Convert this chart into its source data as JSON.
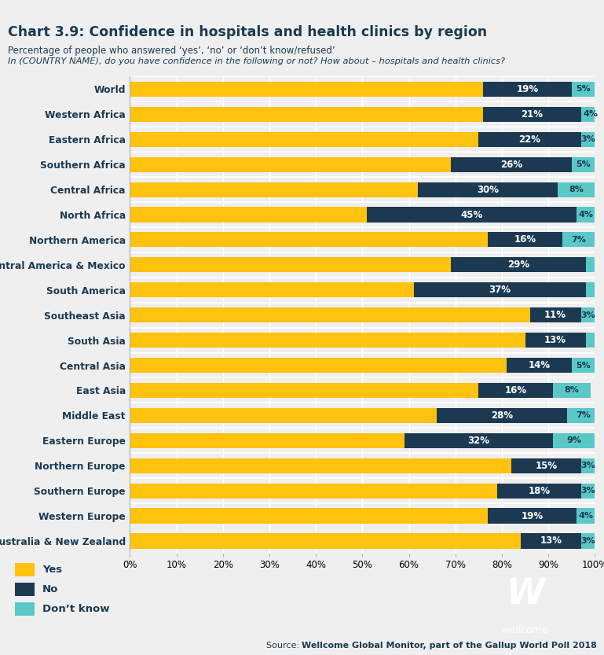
{
  "title": "Chart 3.9: Confidence in hospitals and health clinics by region",
  "subtitle1": "Percentage of people who answered ‘yes’, ‘no’ or ‘don’t know/refused’",
  "subtitle2": "In (COUNTRY NAME), do you have confidence in the following or not? How about – hospitals and health clinics?",
  "source_normal": "Source: ",
  "source_bold": "Wellcome Global Monitor, part of the Gallup World Poll 2018",
  "categories": [
    "World",
    "Western Africa",
    "Eastern Africa",
    "Southern Africa",
    "Central Africa",
    "North Africa",
    "Northern America",
    "Central America & Mexico",
    "South America",
    "Southeast Asia",
    "South Asia",
    "Central Asia",
    "East Asia",
    "Middle East",
    "Eastern Europe",
    "Northern Europe",
    "Southern Europe",
    "Western Europe",
    "Australia & New Zealand"
  ],
  "yes": [
    76,
    76,
    75,
    69,
    62,
    51,
    77,
    69,
    61,
    86,
    85,
    81,
    75,
    66,
    59,
    82,
    79,
    77,
    84
  ],
  "no": [
    19,
    21,
    22,
    26,
    30,
    45,
    16,
    29,
    37,
    11,
    13,
    14,
    16,
    28,
    32,
    15,
    18,
    19,
    13
  ],
  "dk": [
    5,
    4,
    3,
    5,
    8,
    4,
    7,
    2,
    2,
    3,
    2,
    5,
    8,
    7,
    9,
    3,
    3,
    4,
    3
  ],
  "color_yes": "#FFC20E",
  "color_no": "#1B3A52",
  "color_dk": "#5BC8C8",
  "color_bg": "#EFEFEF",
  "color_top_bar": "#1B3A52",
  "color_text_dark": "#1B3A52",
  "legend_items": [
    "Yes",
    "No",
    "Don’t know"
  ],
  "legend_colors": [
    "#FFC20E",
    "#1B3A52",
    "#5BC8C8"
  ]
}
